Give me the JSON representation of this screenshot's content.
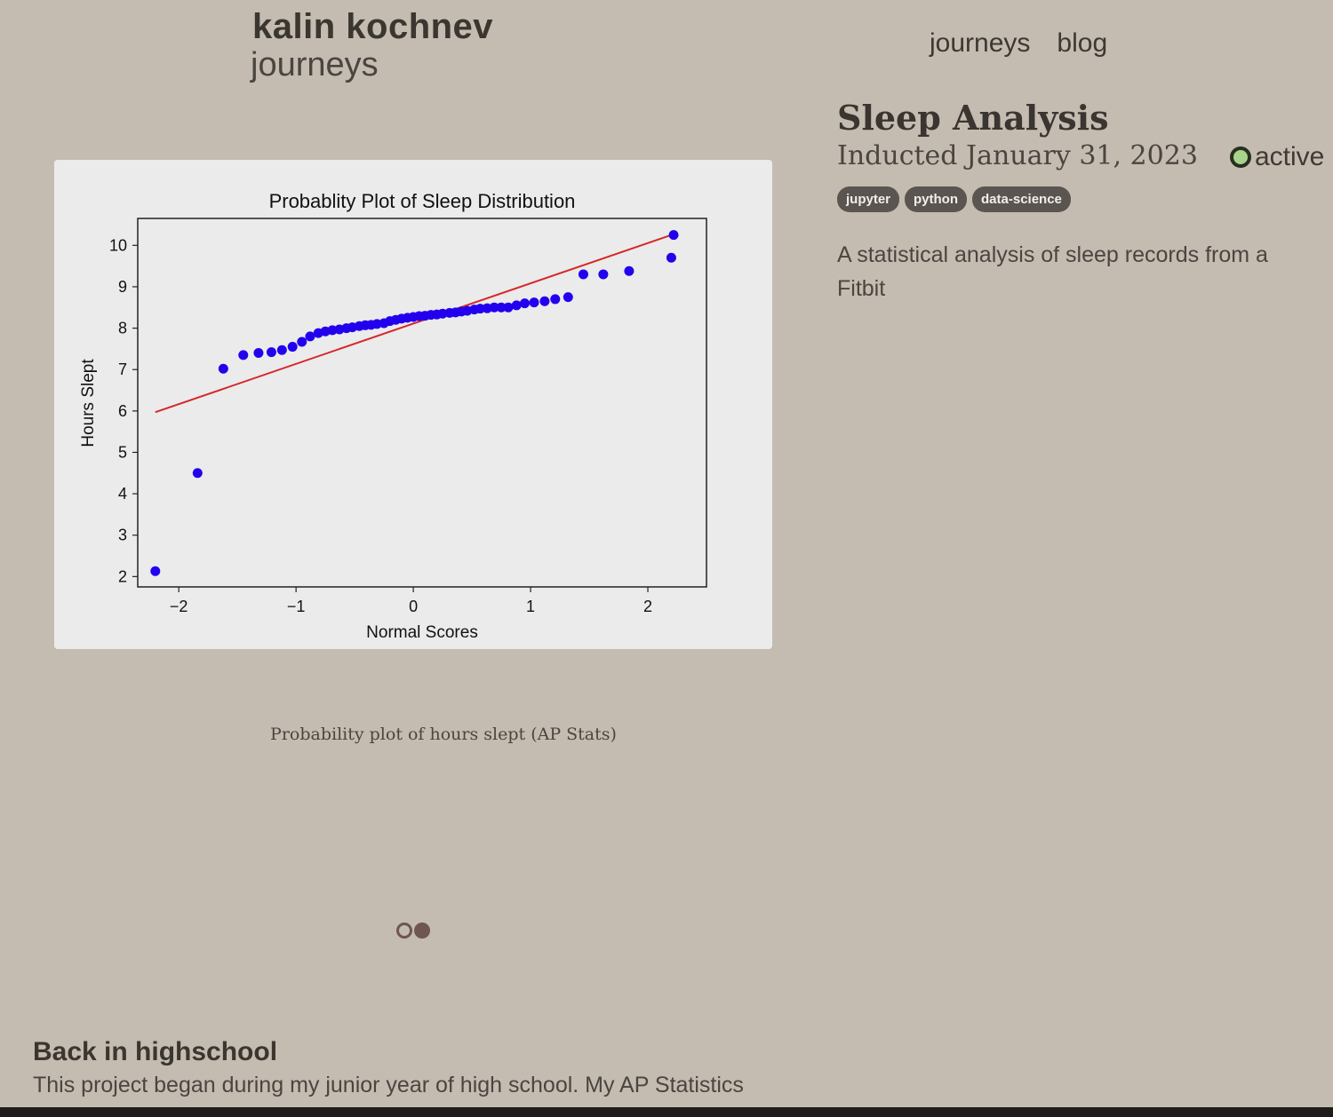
{
  "header": {
    "site_name": "kalin kochnev",
    "section": "journeys"
  },
  "nav": {
    "items": [
      "journeys",
      "blog"
    ]
  },
  "project": {
    "title": "Sleep Analysis",
    "date": "Inducted January 31, 2023",
    "status": "active",
    "status_color": "#a8d38a",
    "tags": [
      "jupyter",
      "python",
      "data-science"
    ],
    "description": "A statistical analysis of sleep records from a Fitbit"
  },
  "figure": {
    "caption": "Probability plot of hours slept (AP Stats)"
  },
  "carousel": {
    "count": 2,
    "active_index": 1
  },
  "section": {
    "heading": "Back in highschool",
    "text": "This project began during my junior year of high school. My AP Statistics"
  },
  "chart_data": {
    "type": "scatter",
    "title": "Probablity Plot of Sleep Distribution",
    "xlabel": "Normal Scores",
    "ylabel": "Hours Slept",
    "xlim": [
      -2.35,
      2.5
    ],
    "ylim": [
      1.75,
      10.65
    ],
    "xticks": [
      -2,
      -1,
      0,
      1,
      2
    ],
    "xtick_labels": [
      "−2",
      "−1",
      "0",
      "1",
      "2"
    ],
    "yticks": [
      2,
      3,
      4,
      5,
      6,
      7,
      8,
      9,
      10
    ],
    "point_color": "#2200ee",
    "line_color": "#d62728",
    "points": [
      [
        -2.2,
        2.13
      ],
      [
        -1.84,
        4.5
      ],
      [
        -1.62,
        7.02
      ],
      [
        -1.45,
        7.35
      ],
      [
        -1.32,
        7.4
      ],
      [
        -1.21,
        7.42
      ],
      [
        -1.12,
        7.47
      ],
      [
        -1.03,
        7.55
      ],
      [
        -0.95,
        7.67
      ],
      [
        -0.88,
        7.8
      ],
      [
        -0.81,
        7.88
      ],
      [
        -0.75,
        7.92
      ],
      [
        -0.69,
        7.95
      ],
      [
        -0.63,
        7.97
      ],
      [
        -0.57,
        8.0
      ],
      [
        -0.52,
        8.02
      ],
      [
        -0.46,
        8.05
      ],
      [
        -0.41,
        8.07
      ],
      [
        -0.36,
        8.08
      ],
      [
        -0.31,
        8.1
      ],
      [
        -0.25,
        8.12
      ],
      [
        -0.2,
        8.17
      ],
      [
        -0.15,
        8.2
      ],
      [
        -0.1,
        8.23
      ],
      [
        -0.05,
        8.25
      ],
      [
        0.0,
        8.27
      ],
      [
        0.05,
        8.29
      ],
      [
        0.1,
        8.3
      ],
      [
        0.15,
        8.32
      ],
      [
        0.2,
        8.33
      ],
      [
        0.25,
        8.35
      ],
      [
        0.31,
        8.37
      ],
      [
        0.36,
        8.38
      ],
      [
        0.41,
        8.4
      ],
      [
        0.46,
        8.42
      ],
      [
        0.52,
        8.45
      ],
      [
        0.57,
        8.47
      ],
      [
        0.63,
        8.48
      ],
      [
        0.69,
        8.5
      ],
      [
        0.75,
        8.5
      ],
      [
        0.81,
        8.5
      ],
      [
        0.88,
        8.55
      ],
      [
        0.95,
        8.6
      ],
      [
        1.03,
        8.62
      ],
      [
        1.12,
        8.65
      ],
      [
        1.21,
        8.7
      ],
      [
        1.32,
        8.75
      ],
      [
        1.45,
        9.3
      ],
      [
        1.62,
        9.3
      ],
      [
        1.84,
        9.38
      ],
      [
        2.2,
        9.7
      ],
      [
        2.22,
        10.25
      ]
    ],
    "fit_line": {
      "x": [
        -2.2,
        2.2
      ],
      "y": [
        5.97,
        10.25
      ]
    }
  }
}
